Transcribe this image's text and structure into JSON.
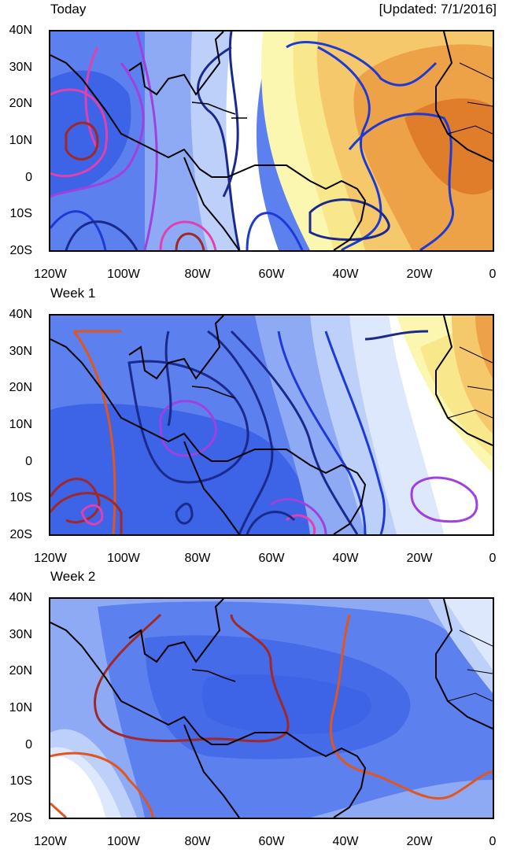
{
  "updated": "[Updated: 7/1/2016]",
  "panels": [
    {
      "title": "Today"
    },
    {
      "title": "Week 1"
    },
    {
      "title": "Week 2"
    }
  ],
  "lat_labels": [
    "40N",
    "30N",
    "20N",
    "10N",
    "0",
    "10S",
    "20S"
  ],
  "lon_labels": [
    "120W",
    "100W",
    "80W",
    "60W",
    "40W",
    "20W",
    "0"
  ],
  "colors": {
    "deep_blue": "#3d63e6",
    "mid_blue": "#5d80ef",
    "light_blue": "#8eaaf5",
    "pale_blue": "#bcd0fa",
    "very_pale_blue": "#dde8fd",
    "pale_yellow": "#fbf7b0",
    "yellow": "#f9e78c",
    "light_orange": "#f6c86c",
    "orange": "#eda248",
    "dark_orange": "#e07d2b",
    "contour_navy": "#1a2a8c",
    "contour_blue": "#1e3ad6",
    "contour_purple": "#a040e0",
    "contour_pink": "#e040b0",
    "contour_darkred": "#a02828",
    "contour_orange": "#e0561e"
  }
}
